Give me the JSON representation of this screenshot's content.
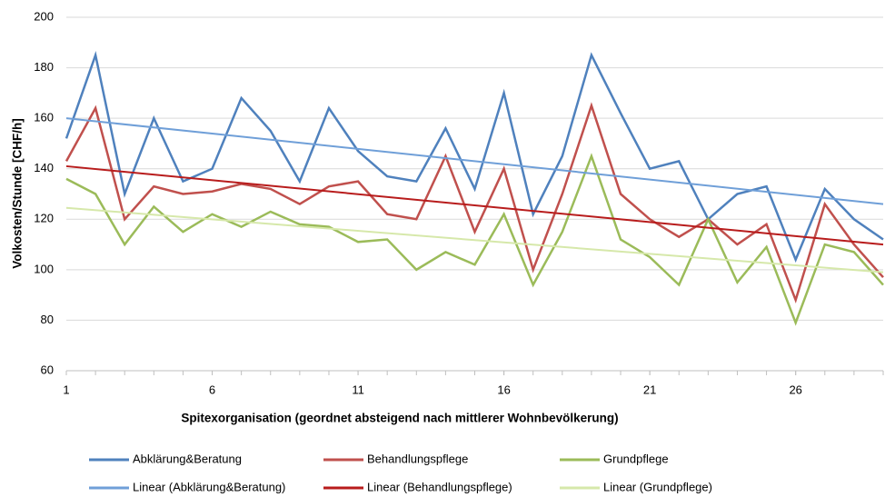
{
  "chart_data": {
    "type": "line",
    "x_label": "Spitexorganisation (geordnet absteigend nach mittlerer Wohnbevölkerung)",
    "y_label": "Volkosten/Stunde [CHF/h]",
    "x": [
      1,
      2,
      3,
      4,
      5,
      6,
      7,
      8,
      9,
      10,
      11,
      12,
      13,
      14,
      15,
      16,
      17,
      18,
      19,
      20,
      21,
      22,
      23,
      24,
      25,
      26,
      27,
      28,
      29
    ],
    "series": [
      {
        "name": "Abklärung&Beratung",
        "color": "#4f81bd",
        "values": [
          152,
          185,
          130,
          160,
          135,
          140,
          168,
          155,
          135,
          164,
          147,
          137,
          135,
          156,
          132,
          170,
          122,
          145,
          185,
          162,
          140,
          143,
          120,
          130,
          133,
          104,
          132,
          120,
          112
        ]
      },
      {
        "name": "Behandlungspflege",
        "color": "#c0504d",
        "values": [
          143,
          164,
          120,
          133,
          130,
          131,
          134,
          132,
          126,
          133,
          135,
          122,
          120,
          145,
          115,
          140,
          100,
          130,
          165,
          130,
          120,
          113,
          120,
          110,
          118,
          88,
          126,
          110,
          97
        ]
      },
      {
        "name": "Grundpflege",
        "color": "#9bbb59",
        "values": [
          136,
          130,
          110,
          125,
          115,
          122,
          117,
          123,
          118,
          117,
          111,
          112,
          100,
          107,
          102,
          122,
          94,
          115,
          145,
          112,
          105,
          94,
          120,
          95,
          109,
          79,
          110,
          107,
          94
        ]
      },
      {
        "name": "Linear (Abklärung&Beratung)",
        "color": "#6f9fd8",
        "x": [
          1,
          29
        ],
        "values": [
          160,
          126
        ]
      },
      {
        "name": "Linear (Behandlungspflege)",
        "color": "#b81c1c",
        "x": [
          1,
          29
        ],
        "values": [
          141,
          110
        ]
      },
      {
        "name": "Linear (Grundpflege)",
        "color": "#d6e8aa",
        "x": [
          1,
          29
        ],
        "values": [
          124.5,
          99
        ]
      }
    ],
    "xlim": [
      1,
      29
    ],
    "xticks": [
      1,
      6,
      11,
      16,
      21,
      26
    ],
    "ylim": [
      60,
      200
    ],
    "yticks": [
      60,
      80,
      100,
      120,
      140,
      160,
      180,
      200
    ],
    "grid": true
  }
}
